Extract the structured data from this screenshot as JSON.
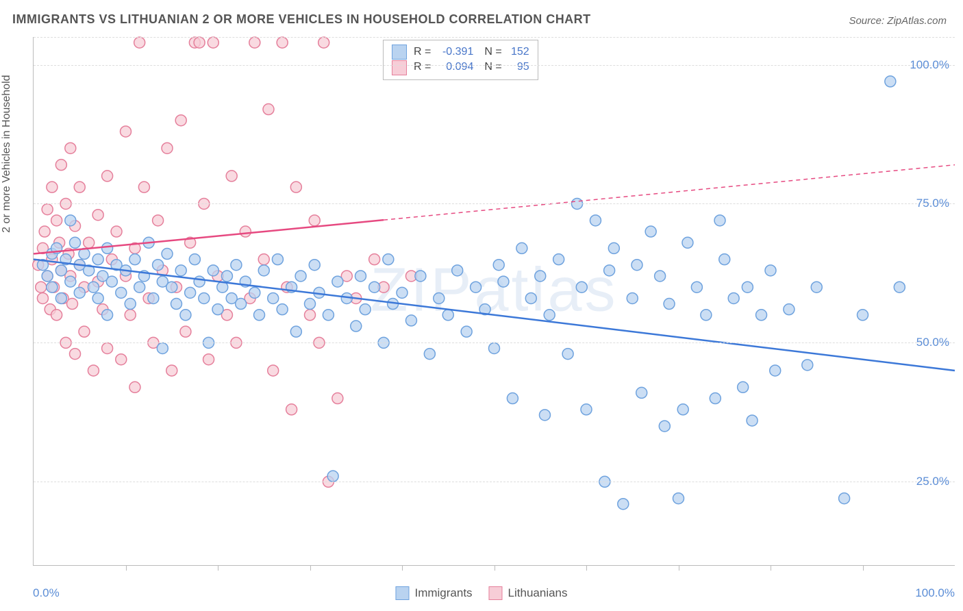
{
  "title": "IMMIGRANTS VS LITHUANIAN 2 OR MORE VEHICLES IN HOUSEHOLD CORRELATION CHART",
  "source": "Source: ZipAtlas.com",
  "ylabel": "2 or more Vehicles in Household",
  "watermark": "ZIPatlas",
  "chart": {
    "type": "scatter",
    "xlim": [
      0,
      100
    ],
    "ylim": [
      10,
      105
    ],
    "yticks": [
      25,
      50,
      75,
      100
    ],
    "ytick_labels": [
      "25.0%",
      "50.0%",
      "75.0%",
      "100.0%"
    ],
    "xticks": [
      10,
      20,
      30,
      40,
      50,
      60,
      70,
      80,
      90
    ],
    "x_axis_labels": {
      "left": "0.0%",
      "right": "100.0%"
    },
    "background_color": "#ffffff",
    "grid_color": "#dddddd",
    "axis_color": "#bbbbbb",
    "marker_radius": 8,
    "marker_stroke_width": 1.5,
    "line_width": 2.5,
    "series": [
      {
        "name": "Immigrants",
        "color_fill": "#b9d3f0",
        "color_stroke": "#6ea2de",
        "line_color": "#3c78d8",
        "R": "-0.391",
        "N": "152",
        "regression": {
          "x1": 0,
          "y1": 65,
          "x2": 100,
          "y2": 45,
          "dashed_from_x": null
        },
        "points": [
          [
            1,
            64
          ],
          [
            1.5,
            62
          ],
          [
            2,
            66
          ],
          [
            2,
            60
          ],
          [
            2.5,
            67
          ],
          [
            3,
            63
          ],
          [
            3,
            58
          ],
          [
            3.5,
            65
          ],
          [
            4,
            61
          ],
          [
            4,
            72
          ],
          [
            4.5,
            68
          ],
          [
            5,
            64
          ],
          [
            5,
            59
          ],
          [
            5.5,
            66
          ],
          [
            6,
            63
          ],
          [
            6.5,
            60
          ],
          [
            7,
            65
          ],
          [
            7,
            58
          ],
          [
            7.5,
            62
          ],
          [
            8,
            67
          ],
          [
            8,
            55
          ],
          [
            8.5,
            61
          ],
          [
            9,
            64
          ],
          [
            9.5,
            59
          ],
          [
            10,
            63
          ],
          [
            10.5,
            57
          ],
          [
            11,
            65
          ],
          [
            11.5,
            60
          ],
          [
            12,
            62
          ],
          [
            12.5,
            68
          ],
          [
            13,
            58
          ],
          [
            13.5,
            64
          ],
          [
            14,
            61
          ],
          [
            14,
            49
          ],
          [
            14.5,
            66
          ],
          [
            15,
            60
          ],
          [
            15.5,
            57
          ],
          [
            16,
            63
          ],
          [
            16.5,
            55
          ],
          [
            17,
            59
          ],
          [
            17.5,
            65
          ],
          [
            18,
            61
          ],
          [
            18.5,
            58
          ],
          [
            19,
            50
          ],
          [
            19.5,
            63
          ],
          [
            20,
            56
          ],
          [
            20.5,
            60
          ],
          [
            21,
            62
          ],
          [
            21.5,
            58
          ],
          [
            22,
            64
          ],
          [
            22.5,
            57
          ],
          [
            23,
            61
          ],
          [
            24,
            59
          ],
          [
            24.5,
            55
          ],
          [
            25,
            63
          ],
          [
            26,
            58
          ],
          [
            26.5,
            65
          ],
          [
            27,
            56
          ],
          [
            28,
            60
          ],
          [
            28.5,
            52
          ],
          [
            29,
            62
          ],
          [
            30,
            57
          ],
          [
            30.5,
            64
          ],
          [
            31,
            59
          ],
          [
            32,
            55
          ],
          [
            32.5,
            26
          ],
          [
            33,
            61
          ],
          [
            34,
            58
          ],
          [
            35,
            53
          ],
          [
            35.5,
            62
          ],
          [
            36,
            56
          ],
          [
            37,
            60
          ],
          [
            38,
            50
          ],
          [
            38.5,
            65
          ],
          [
            39,
            57
          ],
          [
            40,
            59
          ],
          [
            41,
            54
          ],
          [
            42,
            62
          ],
          [
            43,
            48
          ],
          [
            44,
            58
          ],
          [
            45,
            55
          ],
          [
            46,
            63
          ],
          [
            47,
            52
          ],
          [
            48,
            60
          ],
          [
            49,
            56
          ],
          [
            50,
            49
          ],
          [
            50.5,
            64
          ],
          [
            51,
            61
          ],
          [
            52,
            40
          ],
          [
            53,
            67
          ],
          [
            54,
            58
          ],
          [
            55,
            62
          ],
          [
            55.5,
            37
          ],
          [
            56,
            55
          ],
          [
            57,
            65
          ],
          [
            58,
            48
          ],
          [
            59,
            75
          ],
          [
            59.5,
            60
          ],
          [
            60,
            38
          ],
          [
            61,
            72
          ],
          [
            62,
            25
          ],
          [
            62.5,
            63
          ],
          [
            63,
            67
          ],
          [
            64,
            21
          ],
          [
            65,
            58
          ],
          [
            65.5,
            64
          ],
          [
            66,
            41
          ],
          [
            67,
            70
          ],
          [
            68,
            62
          ],
          [
            68.5,
            35
          ],
          [
            69,
            57
          ],
          [
            70,
            22
          ],
          [
            70.5,
            38
          ],
          [
            71,
            68
          ],
          [
            72,
            60
          ],
          [
            73,
            55
          ],
          [
            74,
            40
          ],
          [
            74.5,
            72
          ],
          [
            75,
            65
          ],
          [
            76,
            58
          ],
          [
            77,
            42
          ],
          [
            77.5,
            60
          ],
          [
            78,
            36
          ],
          [
            79,
            55
          ],
          [
            80,
            63
          ],
          [
            80.5,
            45
          ],
          [
            82,
            56
          ],
          [
            84,
            46
          ],
          [
            85,
            60
          ],
          [
            88,
            22
          ],
          [
            90,
            55
          ],
          [
            93,
            97
          ],
          [
            94,
            60
          ]
        ]
      },
      {
        "name": "Lithuanians",
        "color_fill": "#f7cdd7",
        "color_stroke": "#e57f9b",
        "line_color": "#e64980",
        "R": "0.094",
        "N": "95",
        "regression": {
          "x1": 0,
          "y1": 66,
          "x2": 100,
          "y2": 82,
          "dashed_from_x": 38
        },
        "points": [
          [
            0.5,
            64
          ],
          [
            0.8,
            60
          ],
          [
            1,
            67
          ],
          [
            1,
            58
          ],
          [
            1.2,
            70
          ],
          [
            1.5,
            62
          ],
          [
            1.5,
            74
          ],
          [
            1.8,
            56
          ],
          [
            2,
            65
          ],
          [
            2,
            78
          ],
          [
            2.2,
            60
          ],
          [
            2.5,
            72
          ],
          [
            2.5,
            55
          ],
          [
            2.8,
            68
          ],
          [
            3,
            63
          ],
          [
            3,
            82
          ],
          [
            3.2,
            58
          ],
          [
            3.5,
            75
          ],
          [
            3.5,
            50
          ],
          [
            3.8,
            66
          ],
          [
            4,
            62
          ],
          [
            4,
            85
          ],
          [
            4.2,
            57
          ],
          [
            4.5,
            71
          ],
          [
            4.5,
            48
          ],
          [
            5,
            64
          ],
          [
            5,
            78
          ],
          [
            5.5,
            60
          ],
          [
            5.5,
            52
          ],
          [
            6,
            68
          ],
          [
            6.5,
            45
          ],
          [
            7,
            73
          ],
          [
            7,
            61
          ],
          [
            7.5,
            56
          ],
          [
            8,
            80
          ],
          [
            8,
            49
          ],
          [
            8.5,
            65
          ],
          [
            9,
            70
          ],
          [
            9.5,
            47
          ],
          [
            10,
            62
          ],
          [
            10,
            88
          ],
          [
            10.5,
            55
          ],
          [
            11,
            67
          ],
          [
            11,
            42
          ],
          [
            11.5,
            104
          ],
          [
            12,
            78
          ],
          [
            12.5,
            58
          ],
          [
            13,
            50
          ],
          [
            13.5,
            72
          ],
          [
            14,
            63
          ],
          [
            14.5,
            85
          ],
          [
            15,
            45
          ],
          [
            15.5,
            60
          ],
          [
            16,
            90
          ],
          [
            16.5,
            52
          ],
          [
            17,
            68
          ],
          [
            17.5,
            104
          ],
          [
            18,
            104
          ],
          [
            18.5,
            75
          ],
          [
            19,
            47
          ],
          [
            19.5,
            104
          ],
          [
            20,
            62
          ],
          [
            21,
            55
          ],
          [
            21.5,
            80
          ],
          [
            22,
            50
          ],
          [
            23,
            70
          ],
          [
            23.5,
            58
          ],
          [
            24,
            104
          ],
          [
            25,
            65
          ],
          [
            25.5,
            92
          ],
          [
            26,
            45
          ],
          [
            27,
            104
          ],
          [
            27.5,
            60
          ],
          [
            28,
            38
          ],
          [
            28.5,
            78
          ],
          [
            30,
            55
          ],
          [
            30.5,
            72
          ],
          [
            31,
            50
          ],
          [
            31.5,
            104
          ],
          [
            32,
            25
          ],
          [
            33,
            40
          ],
          [
            34,
            62
          ],
          [
            35,
            58
          ],
          [
            37,
            65
          ],
          [
            38,
            60
          ],
          [
            41,
            62
          ]
        ]
      }
    ]
  },
  "legend_bottom": [
    {
      "label": "Immigrants",
      "fill": "#b9d3f0",
      "stroke": "#6ea2de"
    },
    {
      "label": "Lithuanians",
      "fill": "#f7cdd7",
      "stroke": "#e57f9b"
    }
  ]
}
